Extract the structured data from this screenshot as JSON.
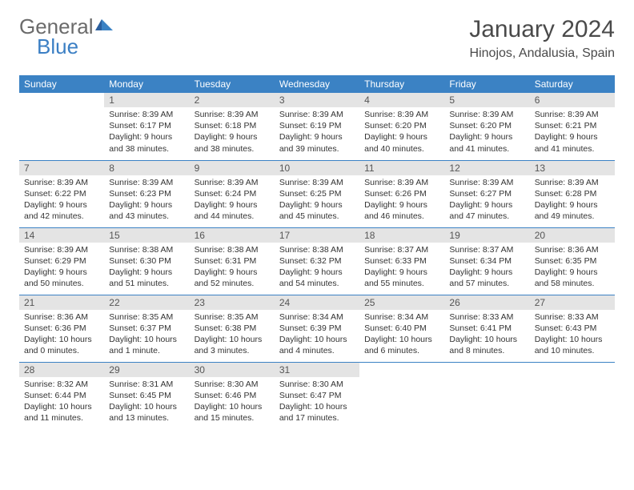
{
  "logo": {
    "general": "General",
    "blue": "Blue"
  },
  "title": "January 2024",
  "location": "Hinojos, Andalusia, Spain",
  "colors": {
    "header_bg": "#3b82c4",
    "header_text": "#ffffff",
    "daynum_bg": "#e4e4e4",
    "border": "#3b82c4",
    "logo_general": "#6b6b6b",
    "logo_blue": "#3b7fc4"
  },
  "day_headers": [
    "Sunday",
    "Monday",
    "Tuesday",
    "Wednesday",
    "Thursday",
    "Friday",
    "Saturday"
  ],
  "weeks": [
    [
      {
        "n": "",
        "sr": "",
        "ss": "",
        "dl": ""
      },
      {
        "n": "1",
        "sr": "Sunrise: 8:39 AM",
        "ss": "Sunset: 6:17 PM",
        "dl": "Daylight: 9 hours and 38 minutes."
      },
      {
        "n": "2",
        "sr": "Sunrise: 8:39 AM",
        "ss": "Sunset: 6:18 PM",
        "dl": "Daylight: 9 hours and 38 minutes."
      },
      {
        "n": "3",
        "sr": "Sunrise: 8:39 AM",
        "ss": "Sunset: 6:19 PM",
        "dl": "Daylight: 9 hours and 39 minutes."
      },
      {
        "n": "4",
        "sr": "Sunrise: 8:39 AM",
        "ss": "Sunset: 6:20 PM",
        "dl": "Daylight: 9 hours and 40 minutes."
      },
      {
        "n": "5",
        "sr": "Sunrise: 8:39 AM",
        "ss": "Sunset: 6:20 PM",
        "dl": "Daylight: 9 hours and 41 minutes."
      },
      {
        "n": "6",
        "sr": "Sunrise: 8:39 AM",
        "ss": "Sunset: 6:21 PM",
        "dl": "Daylight: 9 hours and 41 minutes."
      }
    ],
    [
      {
        "n": "7",
        "sr": "Sunrise: 8:39 AM",
        "ss": "Sunset: 6:22 PM",
        "dl": "Daylight: 9 hours and 42 minutes."
      },
      {
        "n": "8",
        "sr": "Sunrise: 8:39 AM",
        "ss": "Sunset: 6:23 PM",
        "dl": "Daylight: 9 hours and 43 minutes."
      },
      {
        "n": "9",
        "sr": "Sunrise: 8:39 AM",
        "ss": "Sunset: 6:24 PM",
        "dl": "Daylight: 9 hours and 44 minutes."
      },
      {
        "n": "10",
        "sr": "Sunrise: 8:39 AM",
        "ss": "Sunset: 6:25 PM",
        "dl": "Daylight: 9 hours and 45 minutes."
      },
      {
        "n": "11",
        "sr": "Sunrise: 8:39 AM",
        "ss": "Sunset: 6:26 PM",
        "dl": "Daylight: 9 hours and 46 minutes."
      },
      {
        "n": "12",
        "sr": "Sunrise: 8:39 AM",
        "ss": "Sunset: 6:27 PM",
        "dl": "Daylight: 9 hours and 47 minutes."
      },
      {
        "n": "13",
        "sr": "Sunrise: 8:39 AM",
        "ss": "Sunset: 6:28 PM",
        "dl": "Daylight: 9 hours and 49 minutes."
      }
    ],
    [
      {
        "n": "14",
        "sr": "Sunrise: 8:39 AM",
        "ss": "Sunset: 6:29 PM",
        "dl": "Daylight: 9 hours and 50 minutes."
      },
      {
        "n": "15",
        "sr": "Sunrise: 8:38 AM",
        "ss": "Sunset: 6:30 PM",
        "dl": "Daylight: 9 hours and 51 minutes."
      },
      {
        "n": "16",
        "sr": "Sunrise: 8:38 AM",
        "ss": "Sunset: 6:31 PM",
        "dl": "Daylight: 9 hours and 52 minutes."
      },
      {
        "n": "17",
        "sr": "Sunrise: 8:38 AM",
        "ss": "Sunset: 6:32 PM",
        "dl": "Daylight: 9 hours and 54 minutes."
      },
      {
        "n": "18",
        "sr": "Sunrise: 8:37 AM",
        "ss": "Sunset: 6:33 PM",
        "dl": "Daylight: 9 hours and 55 minutes."
      },
      {
        "n": "19",
        "sr": "Sunrise: 8:37 AM",
        "ss": "Sunset: 6:34 PM",
        "dl": "Daylight: 9 hours and 57 minutes."
      },
      {
        "n": "20",
        "sr": "Sunrise: 8:36 AM",
        "ss": "Sunset: 6:35 PM",
        "dl": "Daylight: 9 hours and 58 minutes."
      }
    ],
    [
      {
        "n": "21",
        "sr": "Sunrise: 8:36 AM",
        "ss": "Sunset: 6:36 PM",
        "dl": "Daylight: 10 hours and 0 minutes."
      },
      {
        "n": "22",
        "sr": "Sunrise: 8:35 AM",
        "ss": "Sunset: 6:37 PM",
        "dl": "Daylight: 10 hours and 1 minute."
      },
      {
        "n": "23",
        "sr": "Sunrise: 8:35 AM",
        "ss": "Sunset: 6:38 PM",
        "dl": "Daylight: 10 hours and 3 minutes."
      },
      {
        "n": "24",
        "sr": "Sunrise: 8:34 AM",
        "ss": "Sunset: 6:39 PM",
        "dl": "Daylight: 10 hours and 4 minutes."
      },
      {
        "n": "25",
        "sr": "Sunrise: 8:34 AM",
        "ss": "Sunset: 6:40 PM",
        "dl": "Daylight: 10 hours and 6 minutes."
      },
      {
        "n": "26",
        "sr": "Sunrise: 8:33 AM",
        "ss": "Sunset: 6:41 PM",
        "dl": "Daylight: 10 hours and 8 minutes."
      },
      {
        "n": "27",
        "sr": "Sunrise: 8:33 AM",
        "ss": "Sunset: 6:43 PM",
        "dl": "Daylight: 10 hours and 10 minutes."
      }
    ],
    [
      {
        "n": "28",
        "sr": "Sunrise: 8:32 AM",
        "ss": "Sunset: 6:44 PM",
        "dl": "Daylight: 10 hours and 11 minutes."
      },
      {
        "n": "29",
        "sr": "Sunrise: 8:31 AM",
        "ss": "Sunset: 6:45 PM",
        "dl": "Daylight: 10 hours and 13 minutes."
      },
      {
        "n": "30",
        "sr": "Sunrise: 8:30 AM",
        "ss": "Sunset: 6:46 PM",
        "dl": "Daylight: 10 hours and 15 minutes."
      },
      {
        "n": "31",
        "sr": "Sunrise: 8:30 AM",
        "ss": "Sunset: 6:47 PM",
        "dl": "Daylight: 10 hours and 17 minutes."
      },
      {
        "n": "",
        "sr": "",
        "ss": "",
        "dl": ""
      },
      {
        "n": "",
        "sr": "",
        "ss": "",
        "dl": ""
      },
      {
        "n": "",
        "sr": "",
        "ss": "",
        "dl": ""
      }
    ]
  ]
}
